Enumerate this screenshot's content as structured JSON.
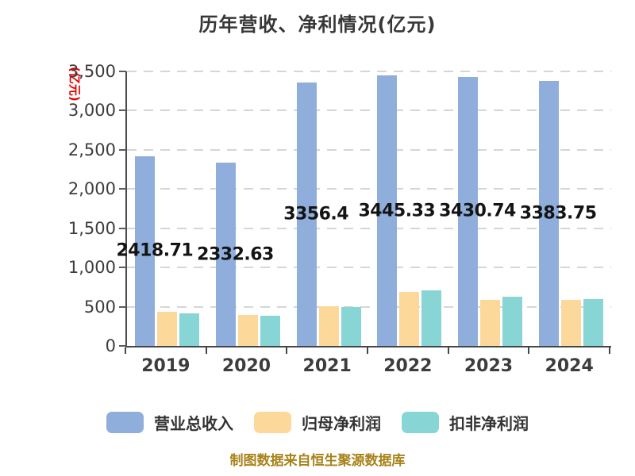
{
  "title": "历年营收、净利情况(亿元)",
  "y_axis": {
    "unit_label": "(亿元)",
    "unit_color": "#e60000",
    "tick_labels": [
      "0",
      "500",
      "1,000",
      "1,500",
      "2,000",
      "2,500",
      "3,000",
      "3,500"
    ],
    "min": 0,
    "max": 3500,
    "step": 500
  },
  "chart_data": {
    "type": "bar",
    "title": "历年营收、净利情况(亿元)",
    "categories": [
      "2019",
      "2020",
      "2021",
      "2022",
      "2023",
      "2024"
    ],
    "series": [
      {
        "name": "营业总收入",
        "color": "#8FAEDC",
        "values": [
          2418.71,
          2332.63,
          3356.4,
          3445.33,
          3430.74,
          3383.75
        ],
        "labels": [
          "2418.71",
          "2332.63",
          "3356.4",
          "3445.33",
          "3430.74",
          "3383.75"
        ]
      },
      {
        "name": "归母净利润",
        "color": "#FCD99B",
        "values": [
          432,
          392,
          503,
          690,
          590,
          585
        ]
      },
      {
        "name": "扣非净利润",
        "color": "#87D5D5",
        "values": [
          415,
          385,
          497,
          705,
          625,
          600
        ]
      }
    ],
    "xlabel": "",
    "ylabel": "(亿元)",
    "ylim": [
      0,
      3500
    ],
    "grid": "horizontal-dashed",
    "legend_position": "bottom"
  },
  "footer": {
    "text": "制图数据来自恒生聚源数据库",
    "color": "#A8821A"
  }
}
